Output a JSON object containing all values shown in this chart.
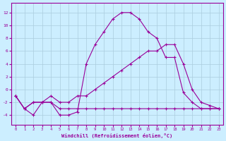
{
  "xlabel": "Windchill (Refroidissement éolien,°C)",
  "bg_color": "#cceeff",
  "grid_color": "#aaccdd",
  "line_color": "#990099",
  "x_ticks": [
    0,
    1,
    2,
    3,
    4,
    5,
    6,
    7,
    8,
    9,
    10,
    11,
    12,
    13,
    14,
    15,
    16,
    17,
    18,
    19,
    20,
    21,
    22,
    23
  ],
  "y_ticks": [
    -4,
    -2,
    0,
    2,
    4,
    6,
    8,
    10,
    12
  ],
  "xlim": [
    -0.5,
    23.5
  ],
  "ylim": [
    -5.5,
    13.5
  ],
  "line1": {
    "x": [
      0,
      1,
      2,
      3,
      4,
      5,
      6,
      7,
      8,
      9,
      10,
      11,
      12,
      13,
      14,
      15,
      16,
      17,
      18,
      19,
      20,
      21,
      22,
      23
    ],
    "y": [
      -1,
      -3,
      -2,
      -2,
      -2,
      -3,
      -3,
      -3,
      -3,
      -3,
      -3,
      -3,
      -3,
      -3,
      -3,
      -3,
      -3,
      -3,
      -3,
      -3,
      -3,
      -3,
      -3,
      -3
    ]
  },
  "line2": {
    "x": [
      0,
      1,
      2,
      3,
      4,
      5,
      6,
      7,
      8,
      9,
      10,
      11,
      12,
      13,
      14,
      15,
      16,
      17,
      18,
      19,
      20,
      21,
      22,
      23
    ],
    "y": [
      -1,
      -3,
      -2,
      -2,
      -1,
      -2,
      -2,
      -1,
      -1,
      0,
      1,
      2,
      3,
      4,
      5,
      6,
      6,
      7,
      7,
      4,
      0,
      -2,
      -2.5,
      -3
    ]
  },
  "line3": {
    "x": [
      0,
      1,
      2,
      3,
      4,
      5,
      6,
      7,
      8,
      9,
      10,
      11,
      12,
      13,
      14,
      15,
      16,
      17,
      18,
      19,
      20,
      21,
      22,
      23
    ],
    "y": [
      -1,
      -3,
      -4,
      -2,
      -2,
      -4,
      -4,
      -3.5,
      4,
      7,
      9,
      11,
      12,
      12,
      11,
      9,
      8,
      5,
      5,
      -0.5,
      -2,
      -3,
      -3,
      -3
    ]
  }
}
